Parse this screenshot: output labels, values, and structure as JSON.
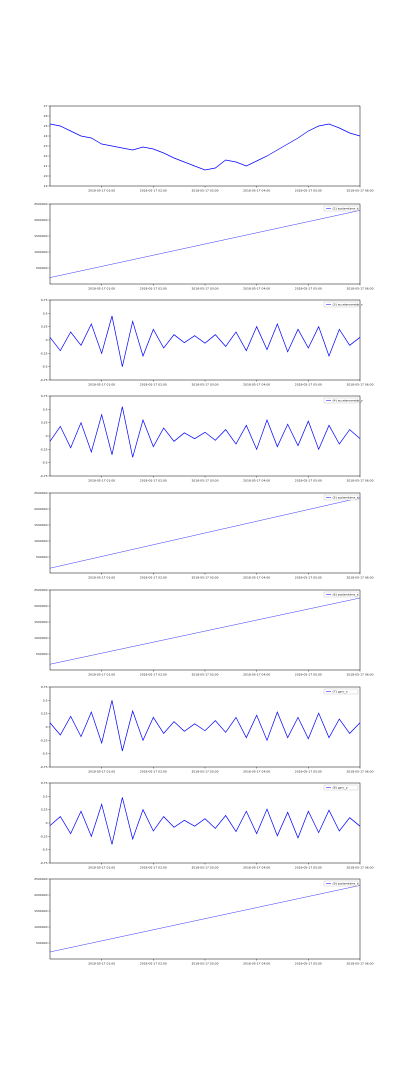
{
  "chart_data": [
    {
      "type": "line",
      "x": [
        0,
        10,
        20,
        30,
        40,
        50,
        60,
        70,
        80,
        90,
        100,
        110,
        120,
        130,
        140,
        150,
        160,
        170,
        180,
        190,
        200,
        210,
        220,
        230,
        240,
        250,
        260,
        270,
        280,
        290,
        300
      ],
      "xlim": [
        0,
        300
      ],
      "xticks": [
        {
          "value": 50,
          "label": "2018-05-17 01:00"
        },
        {
          "value": 100,
          "label": "2018-05-17 02:00"
        },
        {
          "value": 150,
          "label": "2018-05-17 03:00"
        },
        {
          "value": 200,
          "label": "2018-05-17 04:00"
        },
        {
          "value": 250,
          "label": "2018-05-17 05:00"
        },
        {
          "value": 300,
          "label": "2018-05-17 06:00"
        }
      ],
      "ylim": [
        19,
        27
      ],
      "yticks": [
        19,
        20,
        21,
        22,
        23,
        24,
        25,
        26,
        27
      ],
      "series": [
        {
          "color": "#0000ff",
          "values": [
            25.2,
            25,
            24.5,
            24,
            23.8,
            23.2,
            23,
            22.8,
            22.6,
            22.9,
            22.7,
            22.3,
            21.8,
            21.4,
            21,
            20.6,
            20.8,
            21.6,
            21.4,
            21,
            21.5,
            22,
            22.6,
            23.2,
            23.8,
            24.5,
            25,
            25.2,
            24.8,
            24.3,
            24
          ]
        }
      ]
    },
    {
      "type": "line",
      "x": [
        0,
        300
      ],
      "xlim": [
        0,
        300
      ],
      "xticks": [
        {
          "value": 50,
          "label": "2018-05-17 01:00"
        },
        {
          "value": 100,
          "label": "2018-05-17 02:00"
        },
        {
          "value": 150,
          "label": "2018-05-17 03:00"
        },
        {
          "value": 200,
          "label": "2018-05-17 04:00"
        },
        {
          "value": 250,
          "label": "2018-05-17 05:00"
        },
        {
          "value": 300,
          "label": "2018-05-17 06:00"
        }
      ],
      "ylim": [
        0,
        2500000
      ],
      "yticks": [
        500000,
        1000000,
        1500000,
        2000000,
        2500000
      ],
      "legend": "upper right",
      "series": [
        {
          "name": "(2) systemtime_s",
          "color": "#0000ff",
          "values": [
            200000,
            2300000
          ]
        }
      ]
    },
    {
      "type": "line",
      "x": [
        0,
        10,
        20,
        30,
        40,
        50,
        60,
        70,
        80,
        90,
        100,
        110,
        120,
        130,
        140,
        150,
        160,
        170,
        180,
        190,
        200,
        210,
        220,
        230,
        240,
        250,
        260,
        270,
        280,
        290,
        300
      ],
      "xlim": [
        0,
        300
      ],
      "xticks": [
        {
          "value": 50,
          "label": "2018-05-17 01:00"
        },
        {
          "value": 100,
          "label": "2018-05-17 02:00"
        },
        {
          "value": 150,
          "label": "2018-05-17 03:00"
        },
        {
          "value": 200,
          "label": "2018-05-17 04:00"
        },
        {
          "value": 250,
          "label": "2018-05-17 05:00"
        },
        {
          "value": 300,
          "label": "2018-05-17 06:00"
        }
      ],
      "ylim": [
        -0.75,
        0.75
      ],
      "yticks": [
        -0.75,
        -0.5,
        -0.25,
        0,
        0.25,
        0.5,
        0.75
      ],
      "legend": "upper right",
      "series": [
        {
          "name": "(3) accelerometer_x",
          "color": "#0000ff",
          "values": [
            0.05,
            -0.2,
            0.15,
            -0.1,
            0.3,
            -0.25,
            0.45,
            -0.5,
            0.35,
            -0.3,
            0.2,
            -0.15,
            0.1,
            -0.05,
            0.08,
            -0.06,
            0.1,
            -0.12,
            0.15,
            -0.2,
            0.25,
            -0.18,
            0.3,
            -0.22,
            0.2,
            -0.15,
            0.25,
            -0.3,
            0.2,
            -0.1,
            0.05
          ]
        }
      ]
    },
    {
      "type": "line",
      "x": [
        0,
        10,
        20,
        30,
        40,
        50,
        60,
        70,
        80,
        90,
        100,
        110,
        120,
        130,
        140,
        150,
        160,
        170,
        180,
        190,
        200,
        210,
        220,
        230,
        240,
        250,
        260,
        270,
        280,
        290,
        300
      ],
      "xlim": [
        0,
        300
      ],
      "xticks": [
        {
          "value": 50,
          "label": "2018-05-17 01:00"
        },
        {
          "value": 100,
          "label": "2018-05-17 02:00"
        },
        {
          "value": 150,
          "label": "2018-05-17 03:00"
        },
        {
          "value": 200,
          "label": "2018-05-17 04:00"
        },
        {
          "value": 250,
          "label": "2018-05-17 05:00"
        },
        {
          "value": 300,
          "label": "2018-05-17 06:00"
        }
      ],
      "ylim": [
        -0.75,
        0.75
      ],
      "yticks": [
        -0.75,
        -0.5,
        -0.25,
        0,
        0.25,
        0.5,
        0.75
      ],
      "legend": "upper right",
      "series": [
        {
          "name": "(4) accelerometer_y",
          "color": "#0000ff",
          "values": [
            -0.1,
            0.18,
            -0.22,
            0.25,
            -0.3,
            0.4,
            -0.35,
            0.55,
            -0.4,
            0.3,
            -0.2,
            0.15,
            -0.1,
            0.06,
            -0.05,
            0.07,
            -0.08,
            0.12,
            -0.15,
            0.2,
            -0.25,
            0.3,
            -0.2,
            0.22,
            -0.18,
            0.28,
            -0.25,
            0.2,
            -0.15,
            0.12,
            -0.05
          ]
        }
      ]
    },
    {
      "type": "line",
      "x": [
        0,
        300
      ],
      "xlim": [
        0,
        300
      ],
      "xticks": [
        {
          "value": 50,
          "label": "2018-05-17 01:00"
        },
        {
          "value": 100,
          "label": "2018-05-17 02:00"
        },
        {
          "value": 150,
          "label": "2018-05-17 03:00"
        },
        {
          "value": 200,
          "label": "2018-05-17 04:00"
        },
        {
          "value": 250,
          "label": "2018-05-17 05:00"
        },
        {
          "value": 300,
          "label": "2018-05-17 06:00"
        }
      ],
      "ylim": [
        0,
        2500000
      ],
      "yticks": [
        500000,
        1000000,
        1500000,
        2000000,
        2500000
      ],
      "legend": "upper right",
      "series": [
        {
          "name": "(5) systemtime_s",
          "color": "#0000ff",
          "values": [
            150000,
            2350000
          ]
        }
      ]
    },
    {
      "type": "line",
      "x": [
        0,
        300
      ],
      "xlim": [
        0,
        300
      ],
      "xticks": [
        {
          "value": 50,
          "label": "2018-05-17 01:00"
        },
        {
          "value": 100,
          "label": "2018-05-17 02:00"
        },
        {
          "value": 150,
          "label": "2018-05-17 03:00"
        },
        {
          "value": 200,
          "label": "2018-05-17 04:00"
        },
        {
          "value": 250,
          "label": "2018-05-17 05:00"
        },
        {
          "value": 300,
          "label": "2018-05-17 06:00"
        }
      ],
      "ylim": [
        0,
        2500000
      ],
      "yticks": [
        500000,
        1000000,
        1500000,
        2000000,
        2500000
      ],
      "legend": "upper right",
      "series": [
        {
          "name": "(6) systemtime_s",
          "color": "#0000ff",
          "values": [
            180000,
            2250000
          ]
        }
      ]
    },
    {
      "type": "line",
      "x": [
        0,
        10,
        20,
        30,
        40,
        50,
        60,
        70,
        80,
        90,
        100,
        110,
        120,
        130,
        140,
        150,
        160,
        170,
        180,
        190,
        200,
        210,
        220,
        230,
        240,
        250,
        260,
        270,
        280,
        290,
        300
      ],
      "xlim": [
        0,
        300
      ],
      "xticks": [
        {
          "value": 50,
          "label": "2018-05-17 01:00"
        },
        {
          "value": 100,
          "label": "2018-05-17 02:00"
        },
        {
          "value": 150,
          "label": "2018-05-17 03:00"
        },
        {
          "value": 200,
          "label": "2018-05-17 04:00"
        },
        {
          "value": 250,
          "label": "2018-05-17 05:00"
        },
        {
          "value": 300,
          "label": "2018-05-17 06:00"
        }
      ],
      "ylim": [
        -0.75,
        0.75
      ],
      "yticks": [
        -0.75,
        -0.5,
        -0.25,
        0,
        0.25,
        0.5,
        0.75
      ],
      "legend": "upper right",
      "series": [
        {
          "name": "(7) gyro_x",
          "color": "#0000ff",
          "values": [
            0.08,
            -0.15,
            0.2,
            -0.18,
            0.28,
            -0.3,
            0.5,
            -0.45,
            0.3,
            -0.25,
            0.18,
            -0.12,
            0.1,
            -0.08,
            0.06,
            -0.07,
            0.12,
            -0.1,
            0.18,
            -0.2,
            0.22,
            -0.25,
            0.28,
            -0.2,
            0.18,
            -0.22,
            0.26,
            -0.2,
            0.15,
            -0.12,
            0.08
          ]
        }
      ]
    },
    {
      "type": "line",
      "x": [
        0,
        10,
        20,
        30,
        40,
        50,
        60,
        70,
        80,
        90,
        100,
        110,
        120,
        130,
        140,
        150,
        160,
        170,
        180,
        190,
        200,
        210,
        220,
        230,
        240,
        250,
        260,
        270,
        280,
        290,
        300
      ],
      "xlim": [
        0,
        300
      ],
      "xticks": [
        {
          "value": 50,
          "label": "2018-05-17 01:00"
        },
        {
          "value": 100,
          "label": "2018-05-17 02:00"
        },
        {
          "value": 150,
          "label": "2018-05-17 03:00"
        },
        {
          "value": 200,
          "label": "2018-05-17 04:00"
        },
        {
          "value": 250,
          "label": "2018-05-17 05:00"
        },
        {
          "value": 300,
          "label": "2018-05-17 06:00"
        }
      ],
      "ylim": [
        -0.75,
        0.75
      ],
      "yticks": [
        -0.75,
        -0.5,
        -0.25,
        0,
        0.25,
        0.5,
        0.75
      ],
      "legend": "upper right",
      "series": [
        {
          "name": "(8) gyro_y",
          "color": "#0000ff",
          "values": [
            -0.05,
            0.12,
            -0.2,
            0.22,
            -0.25,
            0.35,
            -0.4,
            0.48,
            -0.3,
            0.25,
            -0.15,
            0.12,
            -0.08,
            0.05,
            -0.06,
            0.08,
            -0.1,
            0.14,
            -0.16,
            0.22,
            -0.2,
            0.26,
            -0.24,
            0.2,
            -0.28,
            0.22,
            -0.18,
            0.24,
            -0.15,
            0.1,
            -0.06
          ]
        }
      ]
    },
    {
      "type": "line",
      "x": [
        0,
        300
      ],
      "xlim": [
        0,
        300
      ],
      "xticks": [
        {
          "value": 50,
          "label": "2018-05-17 01:00"
        },
        {
          "value": 100,
          "label": "2018-05-17 02:00"
        },
        {
          "value": 150,
          "label": "2018-05-17 03:00"
        },
        {
          "value": 200,
          "label": "2018-05-17 04:00"
        },
        {
          "value": 250,
          "label": "2018-05-17 05:00"
        },
        {
          "value": 300,
          "label": "2018-05-17 06:00"
        }
      ],
      "ylim": [
        0,
        2500000
      ],
      "yticks": [
        500000,
        1000000,
        1500000,
        2000000,
        2500000
      ],
      "legend": "upper right",
      "series": [
        {
          "name": "(9) systemtime_s",
          "color": "#0000ff",
          "values": [
            220000,
            2300000
          ]
        }
      ]
    }
  ]
}
